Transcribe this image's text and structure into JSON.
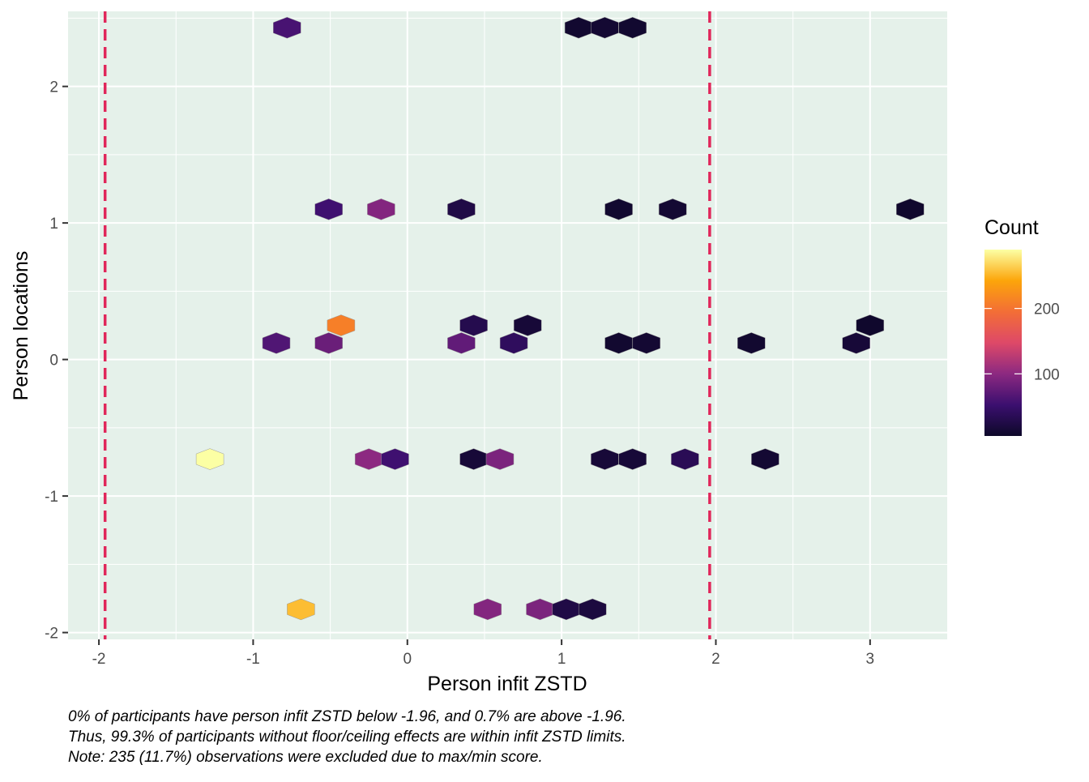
{
  "chart_data": {
    "type": "hexbin",
    "xlabel": "Person infit ZSTD",
    "ylabel": "Person locations",
    "xlim": [
      -2.2,
      3.5
    ],
    "ylim": [
      -2.05,
      2.55
    ],
    "x_ticks": [
      -2,
      -1,
      0,
      1,
      2,
      3
    ],
    "y_ticks": [
      -2,
      -1,
      0,
      1,
      2
    ],
    "grid": true,
    "panel_background": "#e5f1ea",
    "reference_lines": [
      {
        "x": -1.96,
        "color": "#e0265a",
        "style": "dashed"
      },
      {
        "x": 1.96,
        "color": "#e0265a",
        "style": "dashed"
      }
    ],
    "legend": {
      "title": "Count",
      "position": "right",
      "ticks": [
        100,
        200
      ],
      "range": [
        5,
        290
      ],
      "colors": [
        "#0d0829",
        "#3b0f6f",
        "#8c2981",
        "#de4968",
        "#f36e36",
        "#fca50a",
        "#fcffa4"
      ]
    },
    "bins": [
      {
        "x": -0.78,
        "y": 2.43,
        "count": 60
      },
      {
        "x": 1.11,
        "y": 2.43,
        "count": 10
      },
      {
        "x": 1.28,
        "y": 2.43,
        "count": 12
      },
      {
        "x": 1.46,
        "y": 2.43,
        "count": 10
      },
      {
        "x": -0.51,
        "y": 1.1,
        "count": 55
      },
      {
        "x": -0.17,
        "y": 1.1,
        "count": 95
      },
      {
        "x": 0.35,
        "y": 1.1,
        "count": 25
      },
      {
        "x": 1.37,
        "y": 1.1,
        "count": 10
      },
      {
        "x": 1.72,
        "y": 1.1,
        "count": 12
      },
      {
        "x": 3.26,
        "y": 1.1,
        "count": 8
      },
      {
        "x": -0.43,
        "y": 0.25,
        "count": 210
      },
      {
        "x": 0.43,
        "y": 0.25,
        "count": 30
      },
      {
        "x": 0.78,
        "y": 0.25,
        "count": 15
      },
      {
        "x": 3.0,
        "y": 0.25,
        "count": 8
      },
      {
        "x": -0.85,
        "y": 0.12,
        "count": 65
      },
      {
        "x": -0.51,
        "y": 0.12,
        "count": 80
      },
      {
        "x": 0.35,
        "y": 0.12,
        "count": 75
      },
      {
        "x": 0.69,
        "y": 0.12,
        "count": 40
      },
      {
        "x": 1.37,
        "y": 0.12,
        "count": 10
      },
      {
        "x": 1.55,
        "y": 0.12,
        "count": 12
      },
      {
        "x": 2.23,
        "y": 0.12,
        "count": 10
      },
      {
        "x": 2.91,
        "y": 0.12,
        "count": 15
      },
      {
        "x": -1.28,
        "y": -0.73,
        "count": 290
      },
      {
        "x": -0.25,
        "y": -0.73,
        "count": 100
      },
      {
        "x": -0.08,
        "y": -0.73,
        "count": 55
      },
      {
        "x": 0.43,
        "y": -0.73,
        "count": 15
      },
      {
        "x": 0.6,
        "y": -0.73,
        "count": 90
      },
      {
        "x": 1.28,
        "y": -0.73,
        "count": 15
      },
      {
        "x": 1.46,
        "y": -0.73,
        "count": 15
      },
      {
        "x": 1.8,
        "y": -0.73,
        "count": 35
      },
      {
        "x": 2.32,
        "y": -0.73,
        "count": 12
      },
      {
        "x": -0.69,
        "y": -1.83,
        "count": 255
      },
      {
        "x": 0.52,
        "y": -1.83,
        "count": 95
      },
      {
        "x": 0.86,
        "y": -1.83,
        "count": 90
      },
      {
        "x": 1.03,
        "y": -1.83,
        "count": 25
      },
      {
        "x": 1.2,
        "y": -1.83,
        "count": 20
      }
    ]
  },
  "caption": {
    "line1": "0% of participants have person infit ZSTD below -1.96, and 0.7% are above -1.96.",
    "line2": "Thus, 99.3% of participants without floor/ceiling effects are within infit ZSTD limits.",
    "line3": "Note: 235 (11.7%) observations were excluded due to max/min score."
  }
}
